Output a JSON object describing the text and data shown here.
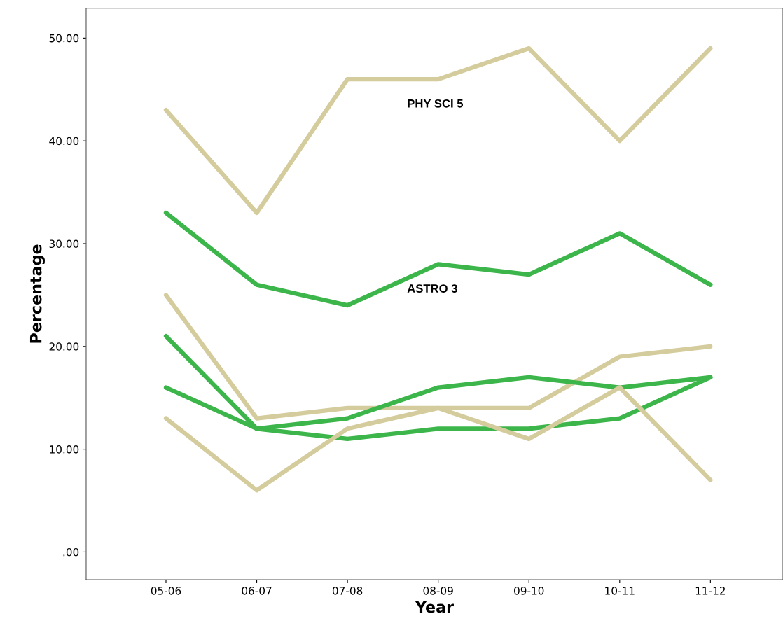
{
  "chart_data": {
    "type": "line",
    "xlabel": "Year",
    "ylabel": "Percentage",
    "categories": [
      "05-06",
      "06-07",
      "07-08",
      "08-09",
      "09-10",
      "10-11",
      "11-12"
    ],
    "series": [
      {
        "name": "PHY SCI 5",
        "color": "#d4cc9c",
        "values": [
          43,
          33,
          46,
          46,
          49,
          40,
          49
        ]
      },
      {
        "name": "ASTRO 3",
        "color": "#3cb54a",
        "values": [
          33,
          26,
          24,
          28,
          27,
          31,
          26
        ]
      },
      {
        "color": "#d4cc9c",
        "values": [
          25,
          13,
          14,
          14,
          14,
          19,
          20
        ]
      },
      {
        "color": "#3cb54a",
        "values": [
          21,
          12,
          11,
          12,
          12,
          13,
          17
        ]
      },
      {
        "color": "#3cb54a",
        "values": [
          16,
          12,
          13,
          16,
          17,
          16,
          17
        ]
      },
      {
        "color": "#d4cc9c",
        "values": [
          13,
          6,
          12,
          14,
          11,
          16,
          7
        ]
      }
    ],
    "ylim": [
      -2.7,
      52.9
    ],
    "yticks": [
      {
        "value": 0,
        "label": ".00"
      },
      {
        "value": 10,
        "label": "10.00"
      },
      {
        "value": 20,
        "label": "20.00"
      },
      {
        "value": 30,
        "label": "30.00"
      },
      {
        "value": 40,
        "label": "40.00"
      },
      {
        "value": 50,
        "label": "50.00"
      }
    ],
    "grid": false,
    "legend": false,
    "marker": "none",
    "line_style": "solid"
  }
}
